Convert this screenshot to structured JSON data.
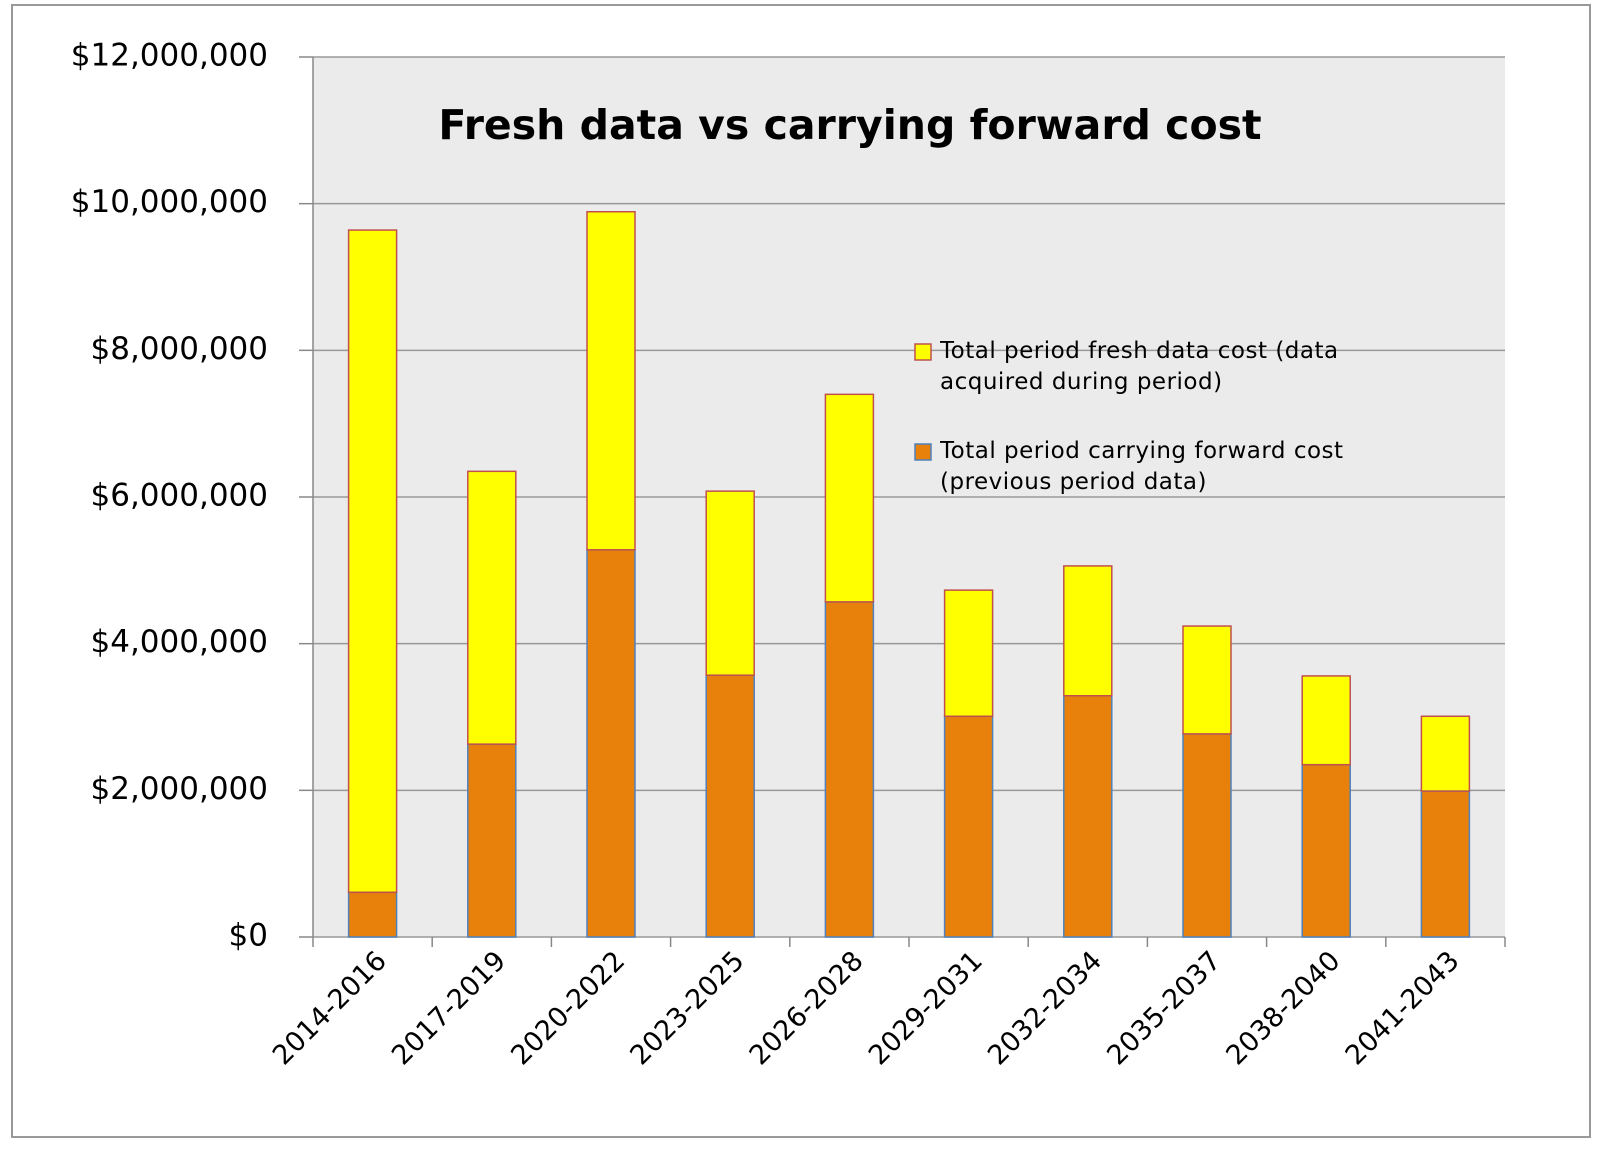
{
  "chart_data": {
    "type": "stacked_bar",
    "title": "Fresh data vs carrying forward cost",
    "categories": [
      "2014-2016",
      "2017-2019",
      "2020-2022",
      "2023-2025",
      "2026-2028",
      "2029-2031",
      "2032-2034",
      "2035-2037",
      "2038-2040",
      "2041-2043"
    ],
    "series": [
      {
        "name": "Total period carrying forward cost (previous period data)",
        "color": "#e8800c",
        "stroke": "#4f81bd",
        "values": [
          610000,
          2630000,
          5280000,
          3570000,
          4570000,
          3010000,
          3290000,
          2770000,
          2350000,
          1990000
        ]
      },
      {
        "name": "Total period fresh data cost (data acquired during period)",
        "color": "#ffff00",
        "stroke": "#c0504d",
        "values": [
          9030000,
          3720000,
          4610000,
          2510000,
          2830000,
          1720000,
          1770000,
          1470000,
          1210000,
          1020000
        ]
      }
    ],
    "ylim": [
      0,
      12000000
    ],
    "yticks": [
      {
        "value": 0,
        "label": "$0"
      },
      {
        "value": 2000000,
        "label": "$2,000,000"
      },
      {
        "value": 4000000,
        "label": "$4,000,000"
      },
      {
        "value": 6000000,
        "label": "$6,000,000"
      },
      {
        "value": 8000000,
        "label": "$8,000,000"
      },
      {
        "value": 10000000,
        "label": "$10,000,000"
      },
      {
        "value": 12000000,
        "label": "$12,000,000"
      }
    ],
    "grid": true
  }
}
